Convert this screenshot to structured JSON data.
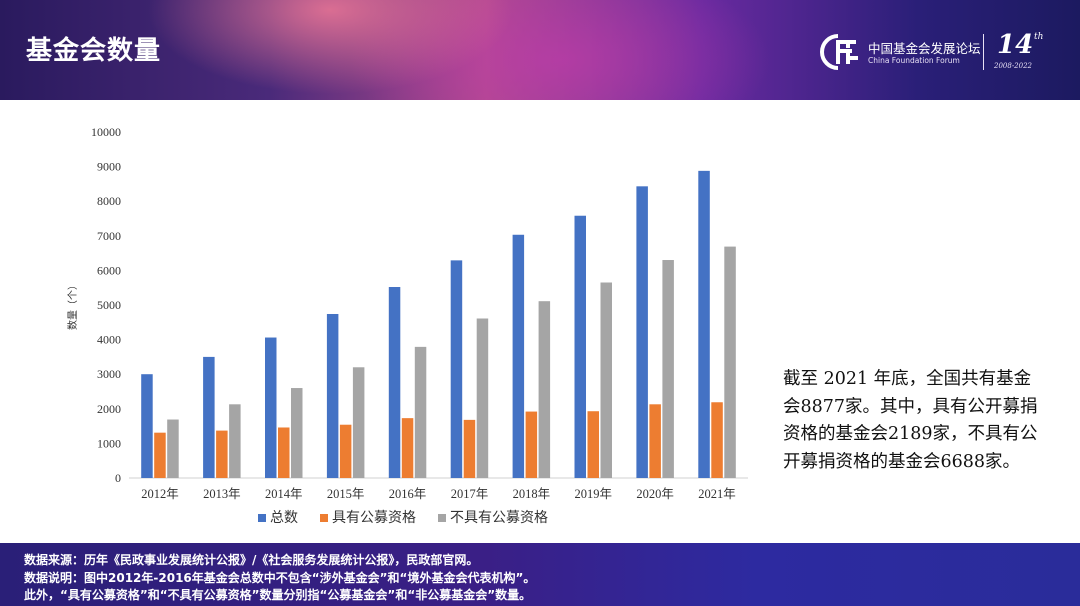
{
  "header": {
    "title": "基金会数量",
    "logo_cn": "中国基金会发展论坛",
    "logo_en": "China Foundation Forum",
    "logo_number": "14",
    "logo_superscript": "th",
    "logo_years": "2008-2022"
  },
  "chart_data": {
    "type": "bar",
    "categories": [
      "2012年",
      "2013年",
      "2014年",
      "2015年",
      "2016年",
      "2017年",
      "2018年",
      "2019年",
      "2020年",
      "2021年"
    ],
    "series": [
      {
        "name": "总数",
        "color": "#4472c4",
        "values": [
          3000,
          3500,
          4060,
          4740,
          5520,
          6290,
          7030,
          7580,
          8430,
          8877
        ]
      },
      {
        "name": "具有公募资格",
        "color": "#ed7d31",
        "values": [
          1310,
          1370,
          1460,
          1540,
          1730,
          1680,
          1920,
          1930,
          2130,
          2189
        ]
      },
      {
        "name": "不具有公募资格",
        "color": "#a5a5a5",
        "values": [
          1690,
          2130,
          2600,
          3200,
          3790,
          4610,
          5110,
          5650,
          6300,
          6688
        ]
      }
    ],
    "yticks": [
      "0",
      "1000",
      "2000",
      "3000",
      "4000",
      "5000",
      "6000",
      "7000",
      "8000",
      "9000",
      "10000"
    ],
    "ylim": [
      0,
      10000
    ],
    "ylabel": "数量（个）",
    "xlabel": "",
    "grid": false,
    "legend_position": "bottom"
  },
  "side_text": "截至 2021 年底，全国共有基金会8877家。其中，具有公开募捐资格的基金会2189家，不具有公开募捐资格的基金会6688家。",
  "footer": {
    "line1": "数据来源：历年《民政事业发展统计公报》/《社会服务发展统计公报》，民政部官网。",
    "line2": "数据说明：图中2012年-2016年基金会总数中不包含“涉外基金会”和“境外基金会代表机构”。",
    "line3": "此外，“具有公募资格”和“不具有公募资格”数量分别指“公募基金会”和“非公募基金会”数量。"
  }
}
